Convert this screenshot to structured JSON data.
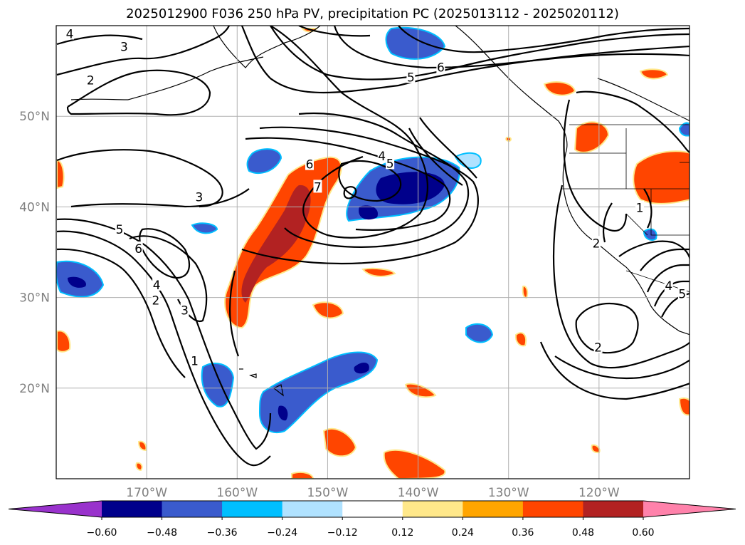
{
  "title": "2025012900 F036 250 hPa PV, precipitation PC (2025013112 - 2025020112)",
  "map": {
    "lat_ticks": [
      {
        "deg": 50,
        "label": "50°N"
      },
      {
        "deg": 40,
        "label": "40°N"
      },
      {
        "deg": 30,
        "label": "30°N"
      },
      {
        "deg": 20,
        "label": "20°N"
      }
    ],
    "lon_ticks": [
      {
        "deg": -170,
        "label": "170°W"
      },
      {
        "deg": -160,
        "label": "160°W"
      },
      {
        "deg": -150,
        "label": "150°W"
      },
      {
        "deg": -140,
        "label": "140°W"
      },
      {
        "deg": -130,
        "label": "130°W"
      },
      {
        "deg": -120,
        "label": "120°W"
      }
    ],
    "extent": {
      "lon_min": -180,
      "lon_max": -110,
      "lat_min": 10,
      "lat_max": 60
    },
    "contour_labels": [
      {
        "text": "4",
        "lon": -178.5,
        "lat": 59.1
      },
      {
        "text": "3",
        "lon": -172.5,
        "lat": 57.7
      },
      {
        "text": "2",
        "lon": -176.2,
        "lat": 54.0
      },
      {
        "text": "6",
        "lon": -137.5,
        "lat": 55.4
      },
      {
        "text": "5",
        "lon": -140.8,
        "lat": 54.3
      },
      {
        "text": "3",
        "lon": -164.2,
        "lat": 41.1
      },
      {
        "text": "6",
        "lon": -152.0,
        "lat": 44.7
      },
      {
        "text": "7",
        "lon": -151.1,
        "lat": 42.2
      },
      {
        "text": "4",
        "lon": -144.0,
        "lat": 45.6
      },
      {
        "text": "5",
        "lon": -143.1,
        "lat": 44.8
      },
      {
        "text": "5",
        "lon": -173.0,
        "lat": 37.5
      },
      {
        "text": "6",
        "lon": -170.9,
        "lat": 35.4
      },
      {
        "text": "4",
        "lon": -168.9,
        "lat": 31.4
      },
      {
        "text": "2",
        "lon": -169.0,
        "lat": 29.7
      },
      {
        "text": "3",
        "lon": -165.8,
        "lat": 28.6
      },
      {
        "text": "1",
        "lon": -164.7,
        "lat": 23.0
      },
      {
        "text": "2",
        "lon": -120.3,
        "lat": 36.0
      },
      {
        "text": "1",
        "lon": -115.5,
        "lat": 39.9
      },
      {
        "text": "2",
        "lon": -120.1,
        "lat": 24.5
      },
      {
        "text": "4",
        "lon": -112.3,
        "lat": 31.3
      },
      {
        "text": "5",
        "lon": -110.8,
        "lat": 30.4
      }
    ]
  },
  "colorbar": {
    "colors": [
      "#9932cc",
      "#00008b",
      "#3a5bcd",
      "#00bfff",
      "#b0e2ff",
      "#ffffff",
      "#ffe88a",
      "#ffa500",
      "#ff4500",
      "#b22222",
      "#ff82ab"
    ],
    "labels": [
      "−0.60",
      "−0.48",
      "−0.36",
      "−0.24",
      "−0.12",
      "0.12",
      "0.24",
      "0.36",
      "0.48",
      "0.60"
    ]
  }
}
